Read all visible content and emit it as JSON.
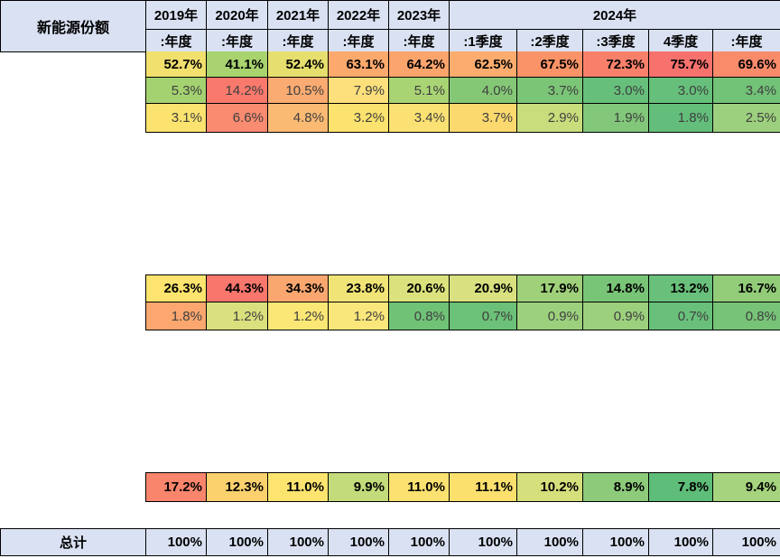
{
  "table": {
    "corner_label": "新能源份额",
    "year_headers": [
      "2019年",
      "2020年",
      "2021年",
      "2022年",
      "2023年",
      "2024年"
    ],
    "period_headers": [
      ":年度",
      ":年度",
      ":年度",
      ":年度",
      ":年度",
      ":1季度",
      ":2季度",
      ":3季度",
      "4季度",
      ":年度"
    ],
    "sections": [
      {
        "id": "section-1",
        "rows": [
          {
            "bold": true,
            "cells": [
              {
                "v": "52.7%",
                "bg": "#F1E06E"
              },
              {
                "v": "41.1%",
                "bg": "#A8D36F"
              },
              {
                "v": "52.4%",
                "bg": "#E6DF6E"
              },
              {
                "v": "63.1%",
                "bg": "#FBA96D"
              },
              {
                "v": "64.2%",
                "bg": "#FBA46C"
              },
              {
                "v": "62.5%",
                "bg": "#FBAC6E"
              },
              {
                "v": "67.5%",
                "bg": "#FA9368"
              },
              {
                "v": "72.3%",
                "bg": "#F8806B"
              },
              {
                "v": "75.7%",
                "bg": "#F7716D"
              },
              {
                "v": "69.6%",
                "bg": "#F98B6B"
              }
            ]
          },
          {
            "bold": false,
            "cells": [
              {
                "v": "5.3%",
                "bg": "#A5D271"
              },
              {
                "v": "14.2%",
                "bg": "#F97A6D"
              },
              {
                "v": "10.5%",
                "bg": "#FAAB71"
              },
              {
                "v": "7.9%",
                "bg": "#FDE07C"
              },
              {
                "v": "5.1%",
                "bg": "#A9D474"
              },
              {
                "v": "4.0%",
                "bg": "#84C876"
              },
              {
                "v": "3.7%",
                "bg": "#7BC577"
              },
              {
                "v": "3.0%",
                "bg": "#66BF7A"
              },
              {
                "v": "3.0%",
                "bg": "#66BF7A"
              },
              {
                "v": "3.4%",
                "bg": "#72C277"
              }
            ]
          },
          {
            "bold": false,
            "cells": [
              {
                "v": "3.1%",
                "bg": "#FCE36F"
              },
              {
                "v": "6.6%",
                "bg": "#F98B70"
              },
              {
                "v": "4.8%",
                "bg": "#FBBA73"
              },
              {
                "v": "3.2%",
                "bg": "#FCE26E"
              },
              {
                "v": "3.4%",
                "bg": "#FBE173"
              },
              {
                "v": "3.7%",
                "bg": "#FBD96F"
              },
              {
                "v": "2.9%",
                "bg": "#C8DD7B"
              },
              {
                "v": "1.9%",
                "bg": "#82C77A"
              },
              {
                "v": "1.8%",
                "bg": "#63BE7B"
              },
              {
                "v": "2.5%",
                "bg": "#9DD07E"
              }
            ]
          }
        ]
      },
      {
        "id": "section-2",
        "rows": [
          {
            "bold": true,
            "cells": [
              {
                "v": "26.3%",
                "bg": "#FCE46E"
              },
              {
                "v": "44.3%",
                "bg": "#F8766C"
              },
              {
                "v": "34.3%",
                "bg": "#FAA76F"
              },
              {
                "v": "23.8%",
                "bg": "#F0E476"
              },
              {
                "v": "20.6%",
                "bg": "#DBE17C"
              },
              {
                "v": "20.9%",
                "bg": "#D8E07F"
              },
              {
                "v": "17.9%",
                "bg": "#9FD07A"
              },
              {
                "v": "14.8%",
                "bg": "#79C578"
              },
              {
                "v": "13.2%",
                "bg": "#69C07B"
              },
              {
                "v": "16.7%",
                "bg": "#92CC79"
              }
            ]
          },
          {
            "bold": false,
            "cells": [
              {
                "v": "1.8%",
                "bg": "#FBA76F"
              },
              {
                "v": "1.2%",
                "bg": "#D9E07D"
              },
              {
                "v": "1.2%",
                "bg": "#FBE775"
              },
              {
                "v": "1.2%",
                "bg": "#FAE77B"
              },
              {
                "v": "0.8%",
                "bg": "#70C277"
              },
              {
                "v": "0.7%",
                "bg": "#6CC178"
              },
              {
                "v": "0.9%",
                "bg": "#9CD07D"
              },
              {
                "v": "0.9%",
                "bg": "#9CD07D"
              },
              {
                "v": "0.7%",
                "bg": "#69C07B"
              },
              {
                "v": "0.8%",
                "bg": "#77C478"
              }
            ]
          }
        ]
      },
      {
        "id": "section-3",
        "rows": [
          {
            "bold": true,
            "cells": [
              {
                "v": "17.2%",
                "bg": "#F9856C"
              },
              {
                "v": "12.3%",
                "bg": "#FBD16E"
              },
              {
                "v": "11.0%",
                "bg": "#FCE46F"
              },
              {
                "v": "9.9%",
                "bg": "#C3DB7B"
              },
              {
                "v": "11.0%",
                "bg": "#FBE170"
              },
              {
                "v": "11.1%",
                "bg": "#FBE06E"
              },
              {
                "v": "10.2%",
                "bg": "#D5DF7C"
              },
              {
                "v": "8.9%",
                "bg": "#8DCA7A"
              },
              {
                "v": "7.8%",
                "bg": "#5EBD78"
              },
              {
                "v": "9.4%",
                "bg": "#A6D37D"
              }
            ]
          }
        ]
      }
    ],
    "total_row": {
      "label": "总计",
      "values": [
        "100%",
        "100%",
        "100%",
        "100%",
        "100%",
        "100%",
        "100%",
        "100%",
        "100%",
        "100%"
      ]
    }
  },
  "style": {
    "header_bg": "#D9E1F2",
    "total_bg": "#D9E1F2",
    "border_color": "#000000",
    "page_bg": "#FFFFFF",
    "bold_text": "#000000",
    "value_text": "#3F3F3F"
  }
}
